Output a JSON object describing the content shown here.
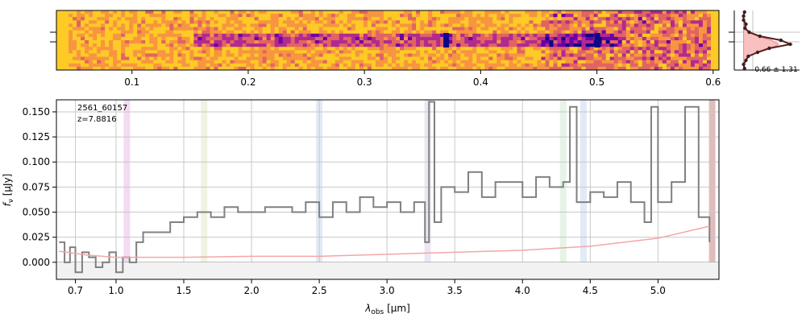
{
  "chart_data": [
    {
      "panel": "spectrum-2d",
      "type": "heatmap",
      "colormap": "plasma",
      "x_ticks": [
        "0.1",
        "0.2",
        "0.3",
        "0.4",
        "0.5",
        "0.6"
      ],
      "x_tick_values": [
        0.1,
        0.2,
        0.3,
        0.4,
        0.5,
        0.6
      ],
      "xlim": [
        0.035,
        0.605
      ],
      "trace_start": 0.15,
      "trace_end": 0.52,
      "hot_spots": [
        0.37,
        0.5
      ]
    },
    {
      "panel": "profile",
      "type": "line",
      "label": "0.66 ± 1.31",
      "profile_values": [
        0.02,
        0.0,
        0.0,
        0.05,
        0.03,
        0.12,
        0.35,
        0.8,
        1.0,
        0.55,
        0.3,
        0.1,
        0.05,
        0.0,
        0.02
      ],
      "model_values": [
        0.0,
        0.0,
        0.0,
        0.01,
        0.03,
        0.1,
        0.3,
        0.6,
        0.75,
        0.6,
        0.3,
        0.1,
        0.03,
        0.01,
        0.0
      ],
      "xlim": [
        -0.2,
        1.2
      ]
    },
    {
      "panel": "spectrum-1d",
      "type": "line",
      "title_lines": [
        "2561_60157",
        "z=7.8816"
      ],
      "xlabel": "λ_obs [µm]",
      "xlabel_main": "λ",
      "xlabel_sub": "obs",
      "xlabel_unit": " [µm]",
      "ylabel": "f_ν [µJy]",
      "ylabel_main": "f",
      "ylabel_sub": "ν",
      "ylabel_unit": " [µJy]",
      "ylim": [
        -0.017,
        0.162
      ],
      "xlim": [
        0.56,
        5.45
      ],
      "x_ticks": [
        "0.7",
        "1.0",
        "1.5",
        "2.0",
        "2.5",
        "3.0",
        "3.5",
        "4.0",
        "4.5",
        "5.0"
      ],
      "x_tick_values": [
        0.7,
        1.0,
        1.5,
        2.0,
        2.5,
        3.0,
        3.5,
        4.0,
        4.5,
        5.0
      ],
      "y_ticks": [
        "0.000",
        "0.025",
        "0.050",
        "0.075",
        "0.100",
        "0.125",
        "0.150"
      ],
      "y_tick_values": [
        0.0,
        0.025,
        0.05,
        0.075,
        0.1,
        0.125,
        0.15
      ],
      "emission_bands": [
        {
          "center": 1.08,
          "color": "#e8b8e6"
        },
        {
          "center": 1.65,
          "color": "#dfe7c4"
        },
        {
          "center": 2.5,
          "color": "#c6d6ee"
        },
        {
          "center": 3.3,
          "color": "#d9cde8"
        },
        {
          "center": 4.3,
          "color": "#cfe8cd"
        },
        {
          "center": 4.45,
          "color": "#c4d6ee"
        },
        {
          "center": 5.4,
          "color": "#c27c7c"
        }
      ],
      "series": [
        {
          "name": "flux",
          "color": "#808080",
          "x": [
            0.58,
            0.62,
            0.66,
            0.7,
            0.75,
            0.8,
            0.85,
            0.9,
            0.95,
            1.0,
            1.05,
            1.1,
            1.15,
            1.2,
            1.3,
            1.4,
            1.5,
            1.6,
            1.7,
            1.8,
            1.9,
            2.0,
            2.1,
            2.2,
            2.3,
            2.4,
            2.5,
            2.6,
            2.7,
            2.8,
            2.9,
            3.0,
            3.1,
            3.2,
            3.28,
            3.31,
            3.35,
            3.4,
            3.5,
            3.6,
            3.7,
            3.8,
            3.9,
            4.0,
            4.1,
            4.2,
            4.3,
            4.35,
            4.4,
            4.5,
            4.6,
            4.7,
            4.8,
            4.9,
            4.95,
            5.0,
            5.1,
            5.2,
            5.3,
            5.38
          ],
          "y": [
            0.02,
            0.0,
            0.015,
            -0.01,
            0.01,
            0.005,
            -0.005,
            0.0,
            0.01,
            -0.01,
            0.005,
            0.0,
            0.02,
            0.03,
            0.03,
            0.04,
            0.045,
            0.05,
            0.045,
            0.055,
            0.05,
            0.05,
            0.055,
            0.055,
            0.05,
            0.06,
            0.045,
            0.06,
            0.05,
            0.065,
            0.055,
            0.06,
            0.05,
            0.06,
            0.02,
            0.16,
            0.04,
            0.075,
            0.07,
            0.09,
            0.065,
            0.08,
            0.08,
            0.065,
            0.085,
            0.075,
            0.08,
            0.155,
            0.06,
            0.07,
            0.065,
            0.08,
            0.06,
            0.04,
            0.155,
            0.06,
            0.08,
            0.155,
            0.045,
            0.02
          ]
        },
        {
          "name": "error",
          "color": "#f4a6a6",
          "x": [
            0.58,
            0.8,
            1.0,
            1.5,
            2.0,
            2.5,
            3.0,
            3.5,
            4.0,
            4.5,
            5.0,
            5.38
          ],
          "y": [
            0.011,
            0.007,
            0.005,
            0.005,
            0.006,
            0.006,
            0.008,
            0.01,
            0.012,
            0.016,
            0.024,
            0.036
          ]
        }
      ]
    }
  ]
}
